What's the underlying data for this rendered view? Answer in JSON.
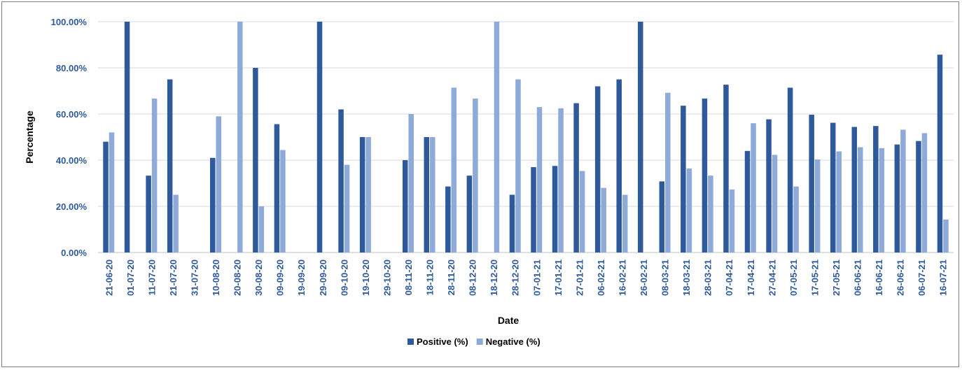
{
  "chart_data": {
    "type": "bar",
    "xlabel": "Date",
    "ylabel": "Percentage",
    "ylim": [
      0,
      100
    ],
    "yticks": [
      "0.00%",
      "20.00%",
      "40.00%",
      "60.00%",
      "80.00%",
      "100.00%"
    ],
    "grid": true,
    "legend_position": "bottom",
    "categories": [
      "21-06-20",
      "01-07-20",
      "11-07-20",
      "21-07-20",
      "31-07-20",
      "10-08-20",
      "20-08-20",
      "30-08-20",
      "09-09-20",
      "19-09-20",
      "29-09-20",
      "09-10-20",
      "19-10-20",
      "29-10-20",
      "08-11-20",
      "18-11-20",
      "28-11-20",
      "08-12-20",
      "18-12-20",
      "28-12-20",
      "07-01-21",
      "17-01-21",
      "27-01-21",
      "06-02-21",
      "16-02-21",
      "26-02-21",
      "08-03-21",
      "18-03-21",
      "28-03-21",
      "07-04-21",
      "17-04-21",
      "27-04-21",
      "07-05-21",
      "17-05-21",
      "27-05-21",
      "06-06-21",
      "16-06-21",
      "26-06-21",
      "06-07-21",
      "16-07-21"
    ],
    "series": [
      {
        "name": "Positive (%)",
        "color": "#2e5a9c",
        "values": [
          48,
          100,
          33.3,
          75,
          0,
          41,
          0,
          80,
          55.6,
          0,
          100,
          62,
          50,
          0,
          40,
          50,
          28.6,
          33.3,
          0,
          25,
          37,
          37.5,
          64.7,
          72,
          75,
          100,
          30.8,
          63.6,
          66.7,
          72.7,
          44,
          57.7,
          71.4,
          59.7,
          56.2,
          54.4,
          54.8,
          46.8,
          48.3,
          85.7
        ]
      },
      {
        "name": "Negative (%)",
        "color": "#8eaad8",
        "values": [
          52,
          0,
          66.7,
          25,
          0,
          59,
          100,
          20,
          44.4,
          0,
          0,
          38,
          50,
          0,
          60,
          50,
          71.4,
          66.7,
          100,
          75,
          63,
          62.5,
          35.3,
          28,
          25,
          0,
          69.2,
          36.4,
          33.3,
          27.3,
          56,
          42.3,
          28.6,
          40.3,
          43.8,
          45.6,
          45.2,
          53.2,
          51.7,
          14.3
        ]
      }
    ]
  }
}
